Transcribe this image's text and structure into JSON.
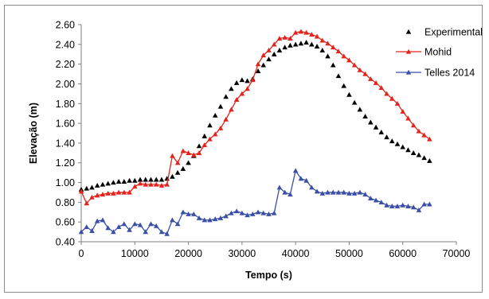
{
  "chart_data": {
    "type": "line",
    "xlabel": "Tempo (s)",
    "ylabel": "Elevação  (m)",
    "xlim": [
      0,
      70000
    ],
    "ylim": [
      0.4,
      2.6
    ],
    "x_ticks": [
      "0",
      "10000",
      "20000",
      "30000",
      "40000",
      "50000",
      "60000",
      "70000"
    ],
    "y_ticks": [
      "0.40",
      "0.60",
      "0.80",
      "1.00",
      "1.20",
      "1.40",
      "1.60",
      "1.80",
      "2.00",
      "2.20",
      "2.40",
      "2.60"
    ],
    "grid": false,
    "legend_position": "top-right",
    "series": [
      {
        "name": "Experimental",
        "color": "#000000",
        "marker": "triangle",
        "line": false,
        "x": [
          0,
          1000,
          2000,
          3000,
          4000,
          5000,
          6000,
          7000,
          8000,
          9000,
          10000,
          11000,
          12000,
          13000,
          14000,
          15000,
          16000,
          17000,
          18000,
          19000,
          20000,
          21000,
          22000,
          23000,
          24000,
          25000,
          26000,
          27000,
          28000,
          29000,
          30000,
          31000,
          32000,
          33000,
          34000,
          35000,
          36000,
          37000,
          38000,
          39000,
          40000,
          41000,
          42000,
          43000,
          44000,
          45000,
          46000,
          47000,
          48000,
          49000,
          50000,
          51000,
          52000,
          53000,
          54000,
          55000,
          56000,
          57000,
          58000,
          59000,
          60000,
          61000,
          62000,
          63000,
          64000,
          65000
        ],
        "y": [
          0.93,
          0.94,
          0.95,
          0.97,
          0.98,
          0.99,
          1.0,
          1.01,
          1.01,
          1.02,
          1.02,
          1.03,
          1.03,
          1.03,
          1.03,
          1.03,
          1.04,
          1.06,
          1.1,
          1.14,
          1.2,
          1.27,
          1.37,
          1.47,
          1.58,
          1.68,
          1.77,
          1.87,
          1.95,
          2.01,
          2.04,
          2.03,
          2.05,
          2.13,
          2.19,
          2.25,
          2.3,
          2.34,
          2.37,
          2.39,
          2.4,
          2.41,
          2.42,
          2.4,
          2.38,
          2.34,
          2.28,
          2.19,
          2.08,
          1.98,
          1.89,
          1.81,
          1.74,
          1.67,
          1.61,
          1.56,
          1.51,
          1.46,
          1.42,
          1.39,
          1.36,
          1.33,
          1.3,
          1.28,
          1.25,
          1.22
        ]
      },
      {
        "name": "Mohid",
        "color": "#e3241c",
        "marker": "triangle",
        "line": true,
        "x": [
          0,
          1000,
          2000,
          3000,
          4000,
          5000,
          6000,
          7000,
          8000,
          9000,
          10000,
          11000,
          12000,
          13000,
          14000,
          15000,
          16000,
          17000,
          18000,
          19000,
          20000,
          21000,
          22000,
          23000,
          24000,
          25000,
          26000,
          27000,
          28000,
          29000,
          30000,
          31000,
          32000,
          33000,
          34000,
          35000,
          36000,
          37000,
          38000,
          39000,
          40000,
          41000,
          42000,
          43000,
          44000,
          45000,
          46000,
          47000,
          48000,
          49000,
          50000,
          51000,
          52000,
          53000,
          54000,
          55000,
          56000,
          57000,
          58000,
          59000,
          60000,
          61000,
          62000,
          63000,
          64000,
          65000
        ],
        "y": [
          0.91,
          0.79,
          0.85,
          0.87,
          0.88,
          0.89,
          0.89,
          0.9,
          0.9,
          0.9,
          0.96,
          0.99,
          0.98,
          0.98,
          0.98,
          0.97,
          0.98,
          1.27,
          1.2,
          1.32,
          1.3,
          1.28,
          1.3,
          1.38,
          1.44,
          1.49,
          1.55,
          1.64,
          1.74,
          1.84,
          1.9,
          1.95,
          2.04,
          2.2,
          2.29,
          2.34,
          2.4,
          2.46,
          2.47,
          2.46,
          2.52,
          2.53,
          2.52,
          2.5,
          2.48,
          2.44,
          2.41,
          2.37,
          2.33,
          2.28,
          2.24,
          2.19,
          2.14,
          2.1,
          2.05,
          2.01,
          1.96,
          1.9,
          1.85,
          1.8,
          1.72,
          1.65,
          1.58,
          1.52,
          1.48,
          1.44
        ]
      },
      {
        "name": "Telles 2014",
        "color": "#3b4fa6",
        "marker": "triangle",
        "line": true,
        "x": [
          0,
          1000,
          2000,
          3000,
          4000,
          5000,
          6000,
          7000,
          8000,
          9000,
          10000,
          11000,
          12000,
          13000,
          14000,
          15000,
          16000,
          17000,
          18000,
          19000,
          20000,
          21000,
          22000,
          23000,
          24000,
          25000,
          26000,
          27000,
          28000,
          29000,
          30000,
          31000,
          32000,
          33000,
          34000,
          35000,
          36000,
          37000,
          38000,
          39000,
          40000,
          41000,
          42000,
          43000,
          44000,
          45000,
          46000,
          47000,
          48000,
          49000,
          50000,
          51000,
          52000,
          53000,
          54000,
          55000,
          56000,
          57000,
          58000,
          59000,
          60000,
          61000,
          62000,
          63000,
          64000,
          65000
        ],
        "y": [
          0.5,
          0.55,
          0.51,
          0.61,
          0.62,
          0.54,
          0.5,
          0.55,
          0.58,
          0.52,
          0.58,
          0.57,
          0.5,
          0.58,
          0.56,
          0.5,
          0.48,
          0.62,
          0.58,
          0.7,
          0.68,
          0.68,
          0.64,
          0.62,
          0.62,
          0.63,
          0.64,
          0.66,
          0.69,
          0.71,
          0.69,
          0.67,
          0.68,
          0.7,
          0.69,
          0.68,
          0.69,
          0.95,
          0.9,
          0.88,
          1.12,
          1.04,
          1.02,
          0.95,
          0.91,
          0.89,
          0.9,
          0.9,
          0.9,
          0.9,
          0.89,
          0.89,
          0.9,
          0.88,
          0.84,
          0.82,
          0.8,
          0.77,
          0.76,
          0.76,
          0.77,
          0.76,
          0.75,
          0.72,
          0.78,
          0.78
        ]
      }
    ]
  }
}
